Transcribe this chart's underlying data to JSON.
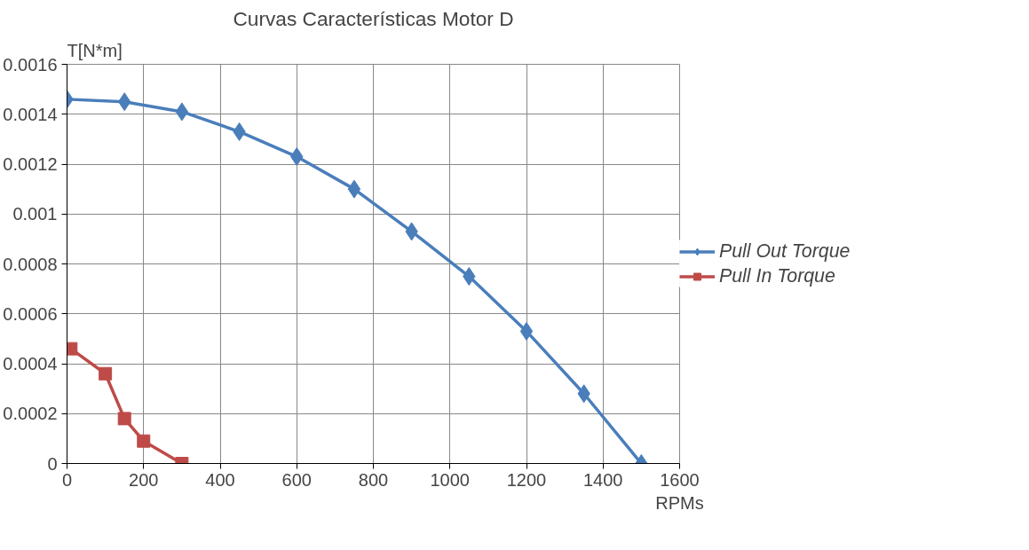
{
  "chart_data": {
    "type": "line",
    "title": "Curvas Características Motor D",
    "xlabel": "RPMs",
    "ylabel": "T[N*m]",
    "series": [
      {
        "name": "Pull Out Torque",
        "color": "#4a7ebb",
        "marker": "diamond",
        "x": [
          0,
          150,
          300,
          450,
          600,
          750,
          900,
          1050,
          1200,
          1350,
          1500
        ],
        "values": [
          0.00146,
          0.00145,
          0.00141,
          0.00133,
          0.00123,
          0.0011,
          0.00093,
          0.00075,
          0.00053,
          0.00028,
          0
        ]
      },
      {
        "name": "Pull In Torque",
        "color": "#be4b48",
        "marker": "square",
        "x": [
          10,
          100,
          150,
          200,
          300
        ],
        "values": [
          0.00046,
          0.00036,
          0.00018,
          9e-05,
          0
        ]
      }
    ],
    "xlim": [
      0,
      1600
    ],
    "xticks": [
      0,
      200,
      400,
      600,
      800,
      1000,
      1200,
      1400,
      1600
    ],
    "ylim": [
      0,
      0.0016
    ],
    "yticks": [
      0,
      0.0002,
      0.0004,
      0.0006,
      0.0008,
      0.001,
      0.0012,
      0.0014,
      0.0016
    ],
    "grid": true,
    "legend": "right",
    "line_style": "solid"
  }
}
